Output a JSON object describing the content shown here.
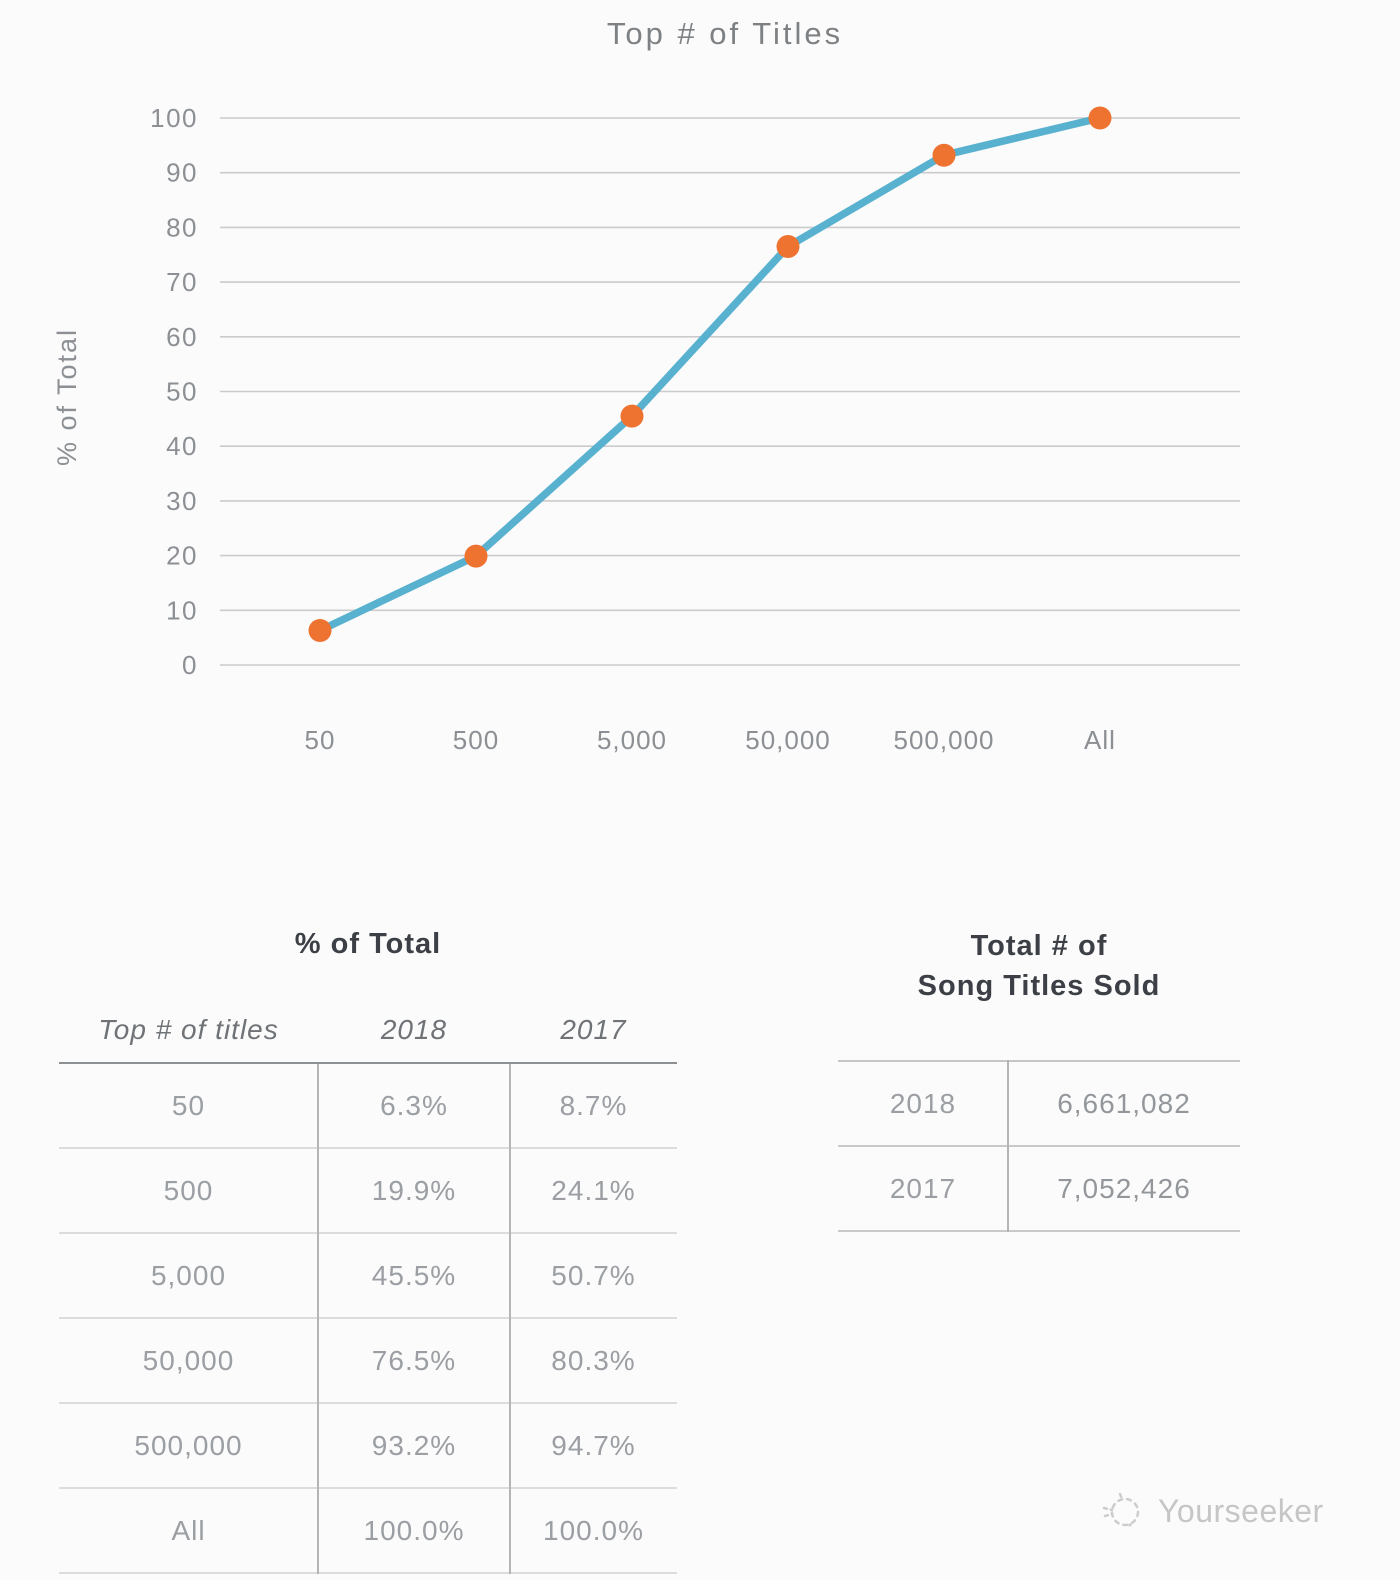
{
  "chart_data": {
    "type": "line",
    "title": "Top # of Titles",
    "xlabel": "",
    "ylabel": "% of Total",
    "categories": [
      "50",
      "500",
      "5,000",
      "50,000",
      "500,000",
      "All"
    ],
    "series": [
      {
        "name": "2018",
        "values": [
          6.3,
          19.9,
          45.5,
          76.5,
          93.2,
          100.0
        ]
      }
    ],
    "ylim": [
      0,
      100
    ],
    "y_ticks": [
      0,
      10,
      20,
      30,
      40,
      50,
      60,
      70,
      80,
      90,
      100
    ],
    "grid": true,
    "legend": false
  },
  "left_table": {
    "title": "% of Total",
    "columns": [
      "Top # of titles",
      "2018",
      "2017"
    ],
    "rows": [
      [
        "50",
        "6.3%",
        "8.7%"
      ],
      [
        "500",
        "19.9%",
        "24.1%"
      ],
      [
        "5,000",
        "45.5%",
        "50.7%"
      ],
      [
        "50,000",
        "76.5%",
        "80.3%"
      ],
      [
        "500,000",
        "93.2%",
        "94.7%"
      ],
      [
        "All",
        "100.0%",
        "100.0%"
      ]
    ]
  },
  "right_table": {
    "title_line1": "Total # of",
    "title_line2": "Song Titles Sold",
    "rows": [
      [
        "2018",
        "6,661,082"
      ],
      [
        "2017",
        "7,052,426"
      ]
    ]
  },
  "watermark": {
    "label": "Yourseeker"
  },
  "colors": {
    "background": "#fbfbfb",
    "grid_line": "#cbcbcb",
    "axis_text": "#8c8f93",
    "chart_title": "#7e8184",
    "line": "#58b1cf",
    "point": "#ee7330",
    "table_title": "#3c4046",
    "table_header_text": "#6f7377",
    "table_row_text": "#9b9ea3",
    "header_rule": "#8d9093",
    "row_separator": "#dcdcdc",
    "column_divider": "#b5b5b5",
    "watermark": "#c6c6c6"
  }
}
